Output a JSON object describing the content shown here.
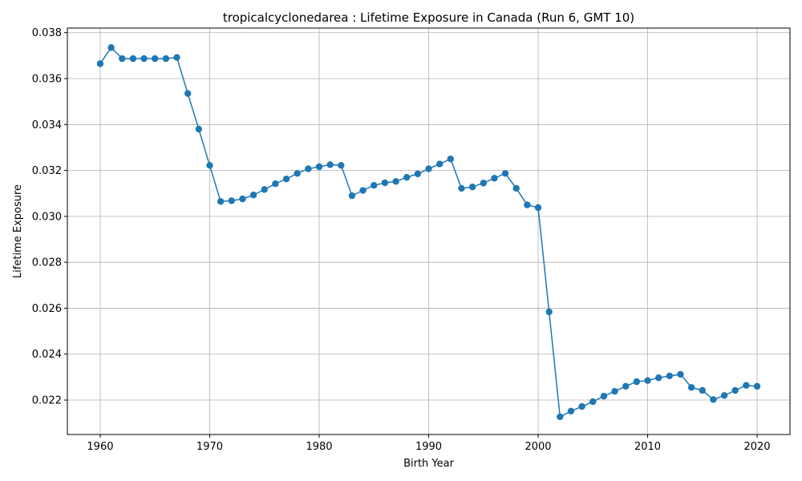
{
  "chart_data": {
    "type": "line",
    "title": "tropicalcyclonedarea : Lifetime Exposure in Canada (Run 6, GMT 10)",
    "xlabel": "Birth Year",
    "ylabel": "Lifetime Exposure",
    "xlim": [
      1957,
      2023
    ],
    "ylim": [
      0.0205,
      0.0382
    ],
    "xticks": [
      1960,
      1970,
      1980,
      1990,
      2000,
      2010,
      2020
    ],
    "xtick_labels": [
      "1960",
      "1970",
      "1980",
      "1990",
      "2000",
      "2010",
      "2020"
    ],
    "yticks": [
      0.022,
      0.024,
      0.026,
      0.028,
      0.03,
      0.032,
      0.034,
      0.036,
      0.038
    ],
    "ytick_labels": [
      "0.022",
      "0.024",
      "0.026",
      "0.028",
      "0.030",
      "0.032",
      "0.034",
      "0.036",
      "0.038"
    ],
    "grid": true,
    "color": "#1f77b4",
    "marker": "circle",
    "x": [
      1960,
      1961,
      1962,
      1963,
      1964,
      1965,
      1966,
      1967,
      1968,
      1969,
      1970,
      1971,
      1972,
      1973,
      1974,
      1975,
      1976,
      1977,
      1978,
      1979,
      1980,
      1981,
      1982,
      1983,
      1984,
      1985,
      1986,
      1987,
      1988,
      1989,
      1990,
      1991,
      1992,
      1993,
      1994,
      1995,
      1996,
      1997,
      1998,
      1999,
      2000,
      2001,
      2002,
      2003,
      2004,
      2005,
      2006,
      2007,
      2008,
      2009,
      2010,
      2011,
      2012,
      2013,
      2014,
      2015,
      2016,
      2017,
      2018,
      2019,
      2020
    ],
    "y": [
      0.03665,
      0.03735,
      0.03687,
      0.03687,
      0.03687,
      0.03687,
      0.03687,
      0.03692,
      0.03535,
      0.0338,
      0.03222,
      0.03065,
      0.03068,
      0.03076,
      0.03093,
      0.03117,
      0.03142,
      0.03163,
      0.03187,
      0.03207,
      0.03216,
      0.03225,
      0.03222,
      0.0309,
      0.03113,
      0.03135,
      0.03146,
      0.03152,
      0.0317,
      0.03185,
      0.03207,
      0.03228,
      0.0325,
      0.03122,
      0.03128,
      0.03145,
      0.03166,
      0.03187,
      0.03122,
      0.0305,
      0.03038,
      0.02584,
      0.02127,
      0.02152,
      0.02172,
      0.02193,
      0.02217,
      0.02238,
      0.0226,
      0.0228,
      0.02285,
      0.02297,
      0.02305,
      0.02312,
      0.02255,
      0.02242,
      0.02202,
      0.0222,
      0.02242,
      0.02264,
      0.0226
    ]
  }
}
